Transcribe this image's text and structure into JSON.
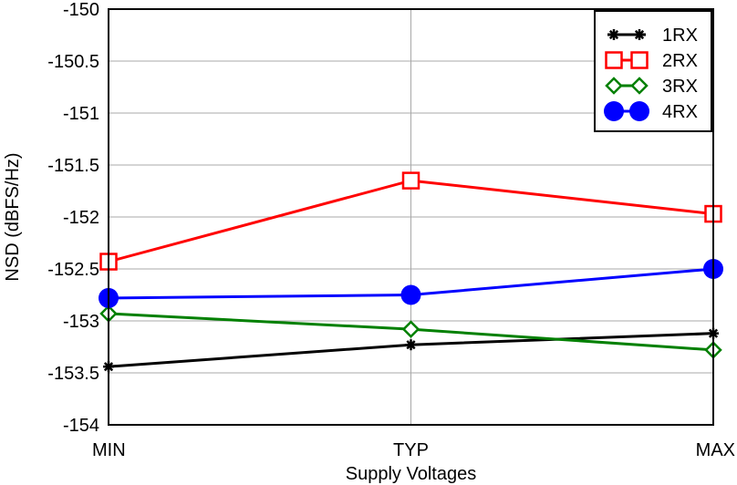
{
  "chart_data": {
    "type": "line",
    "xlabel": "Supply Voltages",
    "ylabel": "NSD (dBFS/Hz)",
    "categories": [
      "MIN",
      "TYP",
      "MAX"
    ],
    "ylim": [
      -154,
      -150
    ],
    "yticks": [
      -150,
      -150.5,
      -151,
      -151.5,
      -152,
      -152.5,
      -153,
      -153.5,
      -154
    ],
    "ytick_labels": [
      "-150",
      "-150.5",
      "-151",
      "-151.5",
      "-152",
      "-152.5",
      "-153",
      "-153.5",
      "-154"
    ],
    "grid": true,
    "legend_position": "top-right",
    "series": [
      {
        "name": "1RX",
        "color": "#000000",
        "marker": "asterisk",
        "values": [
          -153.44,
          -153.23,
          -153.12
        ]
      },
      {
        "name": "2RX",
        "color": "#ff0000",
        "marker": "square-open",
        "values": [
          -152.43,
          -151.65,
          -151.97
        ]
      },
      {
        "name": "3RX",
        "color": "#008000",
        "marker": "diamond-open",
        "values": [
          -152.93,
          -153.08,
          -153.28
        ]
      },
      {
        "name": "4RX",
        "color": "#0000ff",
        "marker": "circle-filled",
        "values": [
          -152.78,
          -152.75,
          -152.5
        ]
      }
    ]
  }
}
